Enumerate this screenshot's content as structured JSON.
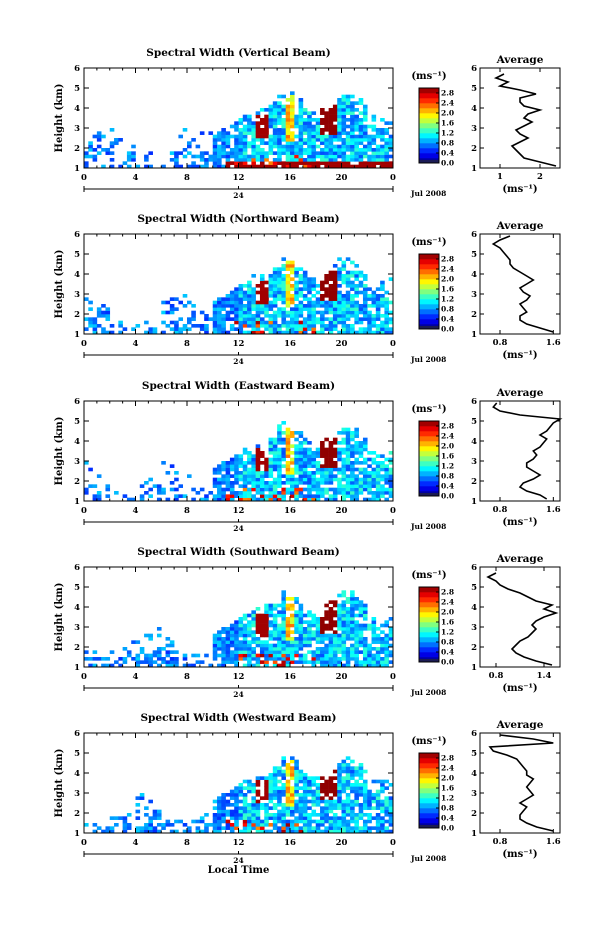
{
  "chart_data": [
    {
      "type": "heatmap",
      "title": "Spectral Width (Vertical Beam)",
      "ylabel": "Height (km)",
      "xticks": [
        "0",
        "4",
        "8",
        "12",
        "16",
        "20",
        "0"
      ],
      "yticks": [
        "1",
        "2",
        "3",
        "4",
        "5",
        "6"
      ],
      "xlim": [
        0,
        24
      ],
      "ylim": [
        1,
        6
      ],
      "date_tick": "24",
      "date_label": "Jul 2008",
      "colorbar": {
        "unit": "(ms⁻¹)",
        "ticks": [
          "0.0",
          "0.4",
          "0.8",
          "1.2",
          "1.6",
          "2.0",
          "2.4",
          "2.8"
        ],
        "range": [
          0,
          3.0
        ]
      },
      "average": {
        "title": "Average",
        "xlabel": "(ms⁻¹)",
        "xticks": [
          "1",
          "2"
        ],
        "xlim": [
          0.5,
          2.5
        ],
        "profile": [
          [
            1.1,
            2.4
          ],
          [
            1.3,
            2.0
          ],
          [
            1.5,
            1.6
          ],
          [
            1.7,
            1.5
          ],
          [
            1.9,
            1.4
          ],
          [
            2.1,
            1.3
          ],
          [
            2.3,
            1.5
          ],
          [
            2.5,
            1.7
          ],
          [
            2.7,
            1.5
          ],
          [
            2.9,
            1.4
          ],
          [
            3.1,
            1.6
          ],
          [
            3.3,
            1.8
          ],
          [
            3.5,
            1.6
          ],
          [
            3.7,
            1.7
          ],
          [
            3.9,
            2.0
          ],
          [
            4.1,
            1.6
          ],
          [
            4.3,
            1.5
          ],
          [
            4.5,
            1.5
          ],
          [
            4.7,
            1.9
          ],
          [
            4.9,
            1.5
          ],
          [
            5.1,
            1.0
          ],
          [
            5.3,
            1.2
          ],
          [
            5.5,
            0.9
          ],
          [
            5.7,
            1.1
          ]
        ]
      }
    },
    {
      "type": "heatmap",
      "title": "Spectral Width (Northward Beam)",
      "ylabel": "Height (km)",
      "xticks": [
        "0",
        "4",
        "8",
        "12",
        "16",
        "20",
        "0"
      ],
      "yticks": [
        "1",
        "2",
        "3",
        "4",
        "5",
        "6"
      ],
      "xlim": [
        0,
        24
      ],
      "ylim": [
        1,
        6
      ],
      "date_tick": "24",
      "date_label": "Jul 2008",
      "colorbar": {
        "unit": "(ms⁻¹)",
        "ticks": [
          "0.0",
          "0.4",
          "0.8",
          "1.2",
          "1.6",
          "2.0",
          "2.4",
          "2.8"
        ],
        "range": [
          0,
          3.0
        ]
      },
      "average": {
        "title": "Average",
        "xlabel": "(ms⁻¹)",
        "xticks": [
          "0.8",
          "1.6"
        ],
        "xlim": [
          0.5,
          1.7
        ],
        "profile": [
          [
            1.1,
            1.6
          ],
          [
            1.3,
            1.4
          ],
          [
            1.5,
            1.2
          ],
          [
            1.7,
            1.1
          ],
          [
            1.9,
            1.1
          ],
          [
            2.1,
            1.2
          ],
          [
            2.3,
            1.15
          ],
          [
            2.5,
            1.1
          ],
          [
            2.7,
            1.2
          ],
          [
            2.9,
            1.25
          ],
          [
            3.1,
            1.15
          ],
          [
            3.3,
            1.1
          ],
          [
            3.5,
            1.2
          ],
          [
            3.7,
            1.3
          ],
          [
            3.9,
            1.2
          ],
          [
            4.1,
            1.1
          ],
          [
            4.3,
            1.0
          ],
          [
            4.5,
            0.95
          ],
          [
            4.7,
            0.95
          ],
          [
            4.9,
            0.9
          ],
          [
            5.1,
            0.85
          ],
          [
            5.3,
            0.8
          ],
          [
            5.5,
            0.7
          ],
          [
            5.7,
            0.8
          ],
          [
            5.9,
            0.95
          ]
        ]
      }
    },
    {
      "type": "heatmap",
      "title": "Spectral Width (Eastward Beam)",
      "ylabel": "Height (km)",
      "xticks": [
        "0",
        "4",
        "8",
        "12",
        "16",
        "20",
        "0"
      ],
      "yticks": [
        "1",
        "2",
        "3",
        "4",
        "5",
        "6"
      ],
      "xlim": [
        0,
        24
      ],
      "ylim": [
        1,
        6
      ],
      "date_tick": "24",
      "date_label": "Jul 2008",
      "colorbar": {
        "unit": "(ms⁻¹)",
        "ticks": [
          "0.0",
          "0.4",
          "0.8",
          "1.2",
          "1.6",
          "2.0",
          "2.4",
          "2.8"
        ],
        "range": [
          0,
          3.0
        ]
      },
      "average": {
        "title": "Average",
        "xlabel": "(ms⁻¹)",
        "xticks": [
          "0.8",
          "1.6"
        ],
        "xlim": [
          0.5,
          1.7
        ],
        "profile": [
          [
            1.1,
            1.5
          ],
          [
            1.3,
            1.4
          ],
          [
            1.5,
            1.2
          ],
          [
            1.7,
            1.1
          ],
          [
            1.9,
            1.15
          ],
          [
            2.1,
            1.3
          ],
          [
            2.3,
            1.4
          ],
          [
            2.5,
            1.3
          ],
          [
            2.7,
            1.2
          ],
          [
            2.9,
            1.2
          ],
          [
            3.1,
            1.3
          ],
          [
            3.3,
            1.35
          ],
          [
            3.5,
            1.3
          ],
          [
            3.7,
            1.4
          ],
          [
            3.9,
            1.45
          ],
          [
            4.1,
            1.5
          ],
          [
            4.3,
            1.4
          ],
          [
            4.5,
            1.5
          ],
          [
            4.7,
            1.55
          ],
          [
            4.9,
            1.6
          ],
          [
            5.1,
            1.7
          ],
          [
            5.3,
            1.1
          ],
          [
            5.5,
            0.8
          ],
          [
            5.7,
            0.7
          ],
          [
            5.9,
            0.75
          ]
        ]
      }
    },
    {
      "type": "heatmap",
      "title": "Spectral Width (Southward Beam)",
      "ylabel": "Height (km)",
      "xticks": [
        "0",
        "4",
        "8",
        "12",
        "16",
        "20",
        "0"
      ],
      "yticks": [
        "1",
        "2",
        "3",
        "4",
        "5",
        "6"
      ],
      "xlim": [
        0,
        24
      ],
      "ylim": [
        1,
        6
      ],
      "date_tick": "24",
      "date_label": "Jul 2008",
      "colorbar": {
        "unit": "(ms⁻¹)",
        "ticks": [
          "0.0",
          "0.4",
          "0.8",
          "1.2",
          "1.6",
          "2.0",
          "2.4",
          "2.8"
        ],
        "range": [
          0,
          3.0
        ]
      },
      "average": {
        "title": "Average",
        "xlabel": "(ms⁻¹)",
        "xticks": [
          "0.8",
          "1.4"
        ],
        "xlim": [
          0.6,
          1.6
        ],
        "profile": [
          [
            1.1,
            1.5
          ],
          [
            1.3,
            1.3
          ],
          [
            1.5,
            1.15
          ],
          [
            1.7,
            1.05
          ],
          [
            1.9,
            1.0
          ],
          [
            2.1,
            1.05
          ],
          [
            2.3,
            1.1
          ],
          [
            2.5,
            1.2
          ],
          [
            2.7,
            1.25
          ],
          [
            2.9,
            1.3
          ],
          [
            3.1,
            1.25
          ],
          [
            3.3,
            1.3
          ],
          [
            3.5,
            1.4
          ],
          [
            3.7,
            1.55
          ],
          [
            3.9,
            1.4
          ],
          [
            4.1,
            1.5
          ],
          [
            4.3,
            1.3
          ],
          [
            4.5,
            1.2
          ],
          [
            4.7,
            1.1
          ],
          [
            4.9,
            0.95
          ],
          [
            5.1,
            0.85
          ],
          [
            5.3,
            0.8
          ],
          [
            5.5,
            0.7
          ],
          [
            5.7,
            0.8
          ]
        ]
      }
    },
    {
      "type": "heatmap",
      "title": "Spectral Width (Westward Beam)",
      "ylabel": "Height (km)",
      "xlabel": "Local Time",
      "xticks": [
        "0",
        "4",
        "8",
        "12",
        "16",
        "20",
        "0"
      ],
      "yticks": [
        "1",
        "2",
        "3",
        "4",
        "5",
        "6"
      ],
      "xlim": [
        0,
        24
      ],
      "ylim": [
        1,
        6
      ],
      "date_tick": "24",
      "date_label": "Jul 2008",
      "colorbar": {
        "unit": "(ms⁻¹)",
        "ticks": [
          "0.0",
          "0.4",
          "0.8",
          "1.2",
          "1.6",
          "2.0",
          "2.4",
          "2.8"
        ],
        "range": [
          0,
          3.0
        ]
      },
      "average": {
        "title": "Average",
        "xlabel": "(ms⁻¹)",
        "xticks": [
          "0.8",
          "1.6"
        ],
        "xlim": [
          0.5,
          1.7
        ],
        "profile": [
          [
            1.1,
            1.6
          ],
          [
            1.3,
            1.35
          ],
          [
            1.5,
            1.2
          ],
          [
            1.7,
            1.1
          ],
          [
            1.9,
            1.1
          ],
          [
            2.1,
            1.15
          ],
          [
            2.3,
            1.2
          ],
          [
            2.5,
            1.1
          ],
          [
            2.7,
            1.2
          ],
          [
            2.9,
            1.3
          ],
          [
            3.1,
            1.25
          ],
          [
            3.3,
            1.2
          ],
          [
            3.5,
            1.25
          ],
          [
            3.7,
            1.3
          ],
          [
            3.9,
            1.2
          ],
          [
            4.1,
            1.2
          ],
          [
            4.3,
            1.15
          ],
          [
            4.5,
            1.1
          ],
          [
            4.7,
            1.05
          ],
          [
            4.9,
            0.9
          ],
          [
            5.1,
            0.7
          ],
          [
            5.3,
            0.65
          ],
          [
            5.5,
            1.6
          ],
          [
            5.7,
            1.3
          ],
          [
            5.9,
            0.8
          ]
        ]
      }
    }
  ]
}
